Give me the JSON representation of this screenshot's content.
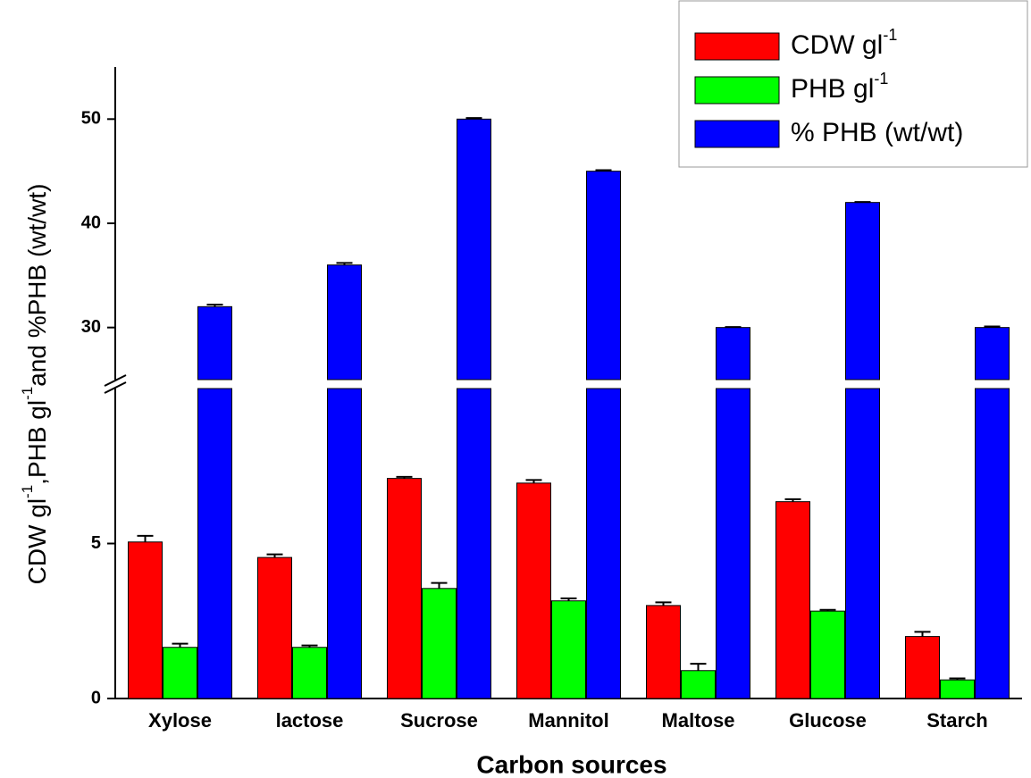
{
  "chart_data": {
    "type": "bar",
    "x_label": "Carbon sources",
    "y_label_parts": [
      "CDW gl",
      "-1",
      ",PHB gl",
      "-1",
      "and %PHB (wt/wt)"
    ],
    "categories": [
      "Xylose",
      "lactose",
      "Sucrose",
      "Mannitol",
      "Maltose",
      "Glucose",
      "Starch"
    ],
    "series": [
      {
        "name": "CDW gl",
        "name_sup": "-1",
        "color": "#ff0000",
        "values": [
          5.05,
          4.55,
          7.1,
          6.95,
          3.0,
          6.35,
          2.0
        ],
        "errors": [
          0.2,
          0.1,
          0.05,
          0.1,
          0.1,
          0.08,
          0.15
        ]
      },
      {
        "name": "PHB gl",
        "name_sup": "-1",
        "color": "#00ff00",
        "values": [
          1.65,
          1.65,
          3.55,
          3.15,
          0.9,
          2.82,
          0.6
        ],
        "errors": [
          0.12,
          0.06,
          0.18,
          0.08,
          0.22,
          0.04,
          0.05
        ]
      },
      {
        "name": "% PHB (wt/wt)",
        "color": "#0000ff",
        "values": [
          32,
          36,
          50,
          45,
          30,
          42,
          30
        ],
        "errors": [
          0.2,
          0.2,
          0.1,
          0.1,
          0.05,
          0.05,
          0.1
        ]
      }
    ],
    "y_segments": [
      {
        "ylim": [
          0,
          10
        ],
        "yticks": [
          0,
          5
        ]
      },
      {
        "ylim": [
          25,
          55
        ],
        "yticks": [
          30,
          40,
          50
        ]
      }
    ],
    "axis_break": true,
    "legend": "upper right"
  }
}
